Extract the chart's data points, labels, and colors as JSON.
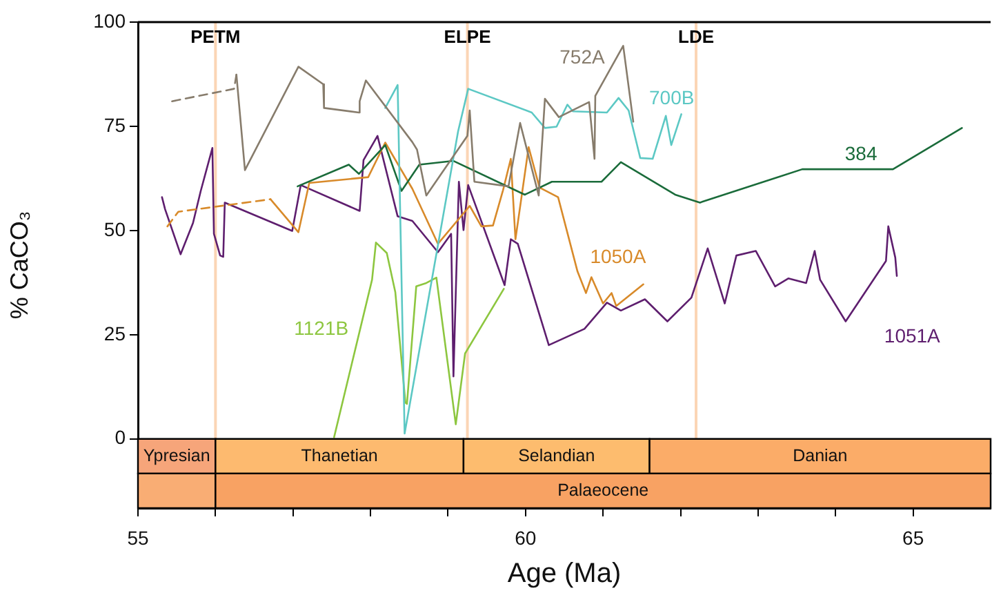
{
  "chart_data": {
    "type": "line",
    "xlabel": "Age (Ma)",
    "ylabel": "% CaCO₃",
    "xlim": [
      55,
      66
    ],
    "ylim": [
      -16.6,
      100
    ],
    "xticks": [
      55,
      {
        "value": 56,
        "label": null
      },
      {
        "value": 57,
        "label": null
      },
      {
        "value": 58,
        "label": null
      },
      {
        "value": 59,
        "label": null
      },
      60,
      {
        "value": 61,
        "label": null
      },
      {
        "value": 62,
        "label": null
      },
      {
        "value": 63,
        "label": null
      },
      {
        "value": 64,
        "label": null
      },
      65
    ],
    "yticks": [
      0,
      25,
      50,
      75,
      100
    ],
    "grid": false,
    "legend": false,
    "marker": "none",
    "series": [
      {
        "name": "752A",
        "color": "#877c6c",
        "x": [
          56.27,
          56.38,
          57.07,
          57.39,
          57.4,
          57.85,
          57.86,
          57.94,
          58.54,
          58.6,
          58.72,
          59.25,
          59.28,
          59.34,
          59.78,
          59.93,
          60.17,
          60.25,
          60.43,
          60.82,
          60.89,
          60.9,
          61.26,
          61.39
        ],
        "values": [
          87.4,
          64.5,
          89.3,
          85.1,
          79.4,
          78.3,
          81,
          86,
          71.2,
          69.4,
          58.4,
          72.7,
          78.8,
          61.7,
          60.6,
          75.8,
          58.4,
          81.6,
          77.2,
          80.8,
          67.2,
          82.3,
          94.3,
          76.1
        ]
      },
      {
        "color": "#877c6c",
        "line_style": "dashed",
        "x": [
          55.44,
          56.24,
          56.27
        ],
        "values": [
          81,
          84,
          87.4
        ]
      },
      {
        "name": "700B",
        "color": "#5cc8c4",
        "x": [
          58.19,
          58.35,
          58.44,
          59.13,
          59.26,
          60.08,
          60.25,
          60.4,
          60.54,
          60.61,
          61.05,
          61.2,
          61.33,
          61.48,
          61.64,
          61.81,
          61.88,
          62.01
        ],
        "values": [
          79.4,
          84.9,
          1.3,
          73.8,
          84,
          78.3,
          74.6,
          74.9,
          80.2,
          78.6,
          78.3,
          81.8,
          78.8,
          67.4,
          67.2,
          77.5,
          70.5,
          77.9
        ]
      },
      {
        "name": "384",
        "color": "#1a6b3a",
        "x": [
          57.06,
          57.72,
          57.85,
          58.19,
          58.4,
          58.63,
          59.07,
          59.99,
          60.34,
          60.98,
          61.23,
          61.93,
          62.25,
          63.57,
          64.74,
          65.63
        ],
        "values": [
          60.6,
          65.8,
          63.6,
          70.5,
          59.5,
          65.8,
          66.7,
          58.6,
          61.7,
          61.7,
          66.4,
          58.6,
          56.7,
          64.7,
          64.7,
          74.6
        ]
      },
      {
        "name": "1050A",
        "color": "#d88a2a",
        "x": [
          56.71,
          57.07,
          57.21,
          57.97,
          58.19,
          58.54,
          58.87,
          59.28,
          59.43,
          59.58,
          59.71,
          59.81,
          59.87,
          60.04,
          60.18,
          60.42,
          60.67,
          60.78,
          60.85,
          61,
          61.11,
          61.17,
          61.52
        ],
        "values": [
          57.5,
          49.6,
          61.4,
          62.8,
          71.1,
          60,
          46.8,
          55.9,
          51,
          51.2,
          59.7,
          67.2,
          47.9,
          70,
          60.3,
          58,
          40.2,
          35,
          38.8,
          32.5,
          35,
          31.9,
          37.1
        ]
      },
      {
        "color": "#d88a2a",
        "line_style": "dashed",
        "x": [
          55.38,
          55.52,
          56.71
        ],
        "values": [
          51,
          54.5,
          57.5
        ]
      },
      {
        "name": "1051A",
        "color": "#5e1e6e",
        "x": [
          55.31,
          55.35,
          55.55,
          55.71,
          55.81,
          55.96,
          55.98,
          56.06,
          56.1,
          56.12,
          56.99,
          57.1,
          57.86,
          57.91,
          58.09,
          58.35,
          58.54,
          58.87,
          59.04,
          59.07,
          59.14,
          59.2,
          59.26,
          59.73,
          59.81,
          59.9,
          60.3,
          60.76,
          61.05,
          61.23,
          61.54,
          61.83,
          62.14,
          62.35,
          62.57,
          62.72,
          62.97,
          63.22,
          63.39,
          63.62,
          63.73,
          63.8,
          64.13,
          64.65,
          64.68,
          64.77,
          64.79
        ],
        "values": [
          58,
          55.1,
          44.3,
          51.8,
          59.5,
          69.8,
          49.2,
          44,
          43.7,
          56.7,
          49.9,
          60.9,
          54.7,
          66.9,
          72.7,
          53.4,
          52.3,
          44.8,
          49.2,
          15,
          61.7,
          50.1,
          60.9,
          36.9,
          47.9,
          46.8,
          22.5,
          26.4,
          32.7,
          30.8,
          33.5,
          28.2,
          33.9,
          45.7,
          32.5,
          44,
          45.1,
          36.6,
          38.5,
          37.4,
          45.1,
          38.2,
          28.2,
          42.7,
          51,
          43.5,
          39.1
        ]
      },
      {
        "name": "1121B",
        "color": "#8dc63f",
        "x": [
          57.53,
          58.02,
          58.07,
          58.21,
          58.32,
          58.45,
          58.47,
          58.59,
          58.72,
          58.85,
          59.1,
          59.22,
          59.72
        ],
        "values": [
          0.4,
          38.2,
          47.1,
          44.6,
          35.2,
          8.7,
          8.4,
          36.6,
          37.4,
          38.7,
          3.5,
          20.5,
          36
        ]
      }
    ],
    "ref_lines": [
      {
        "axis": "x",
        "value": 56,
        "label": "PETM",
        "color": "#fbd5b5"
      },
      {
        "axis": "x",
        "value": 59.25,
        "label": "ELPE",
        "color": "#fbd5b5"
      },
      {
        "axis": "x",
        "value": 62.2,
        "label": "LDE",
        "color": "#fbd5b5"
      }
    ],
    "bands": [
      {
        "axis": "x",
        "from": 55,
        "to": 56,
        "label": "Ypresian",
        "color": "#f6a57a"
      },
      {
        "axis": "x",
        "from": 56,
        "to": 59.2,
        "label": "Thanetian",
        "color": "#fdba6f"
      },
      {
        "axis": "x",
        "from": 59.2,
        "to": 61.6,
        "label": "Selandian",
        "color": "#fdbc6e"
      },
      {
        "axis": "x",
        "from": 61.6,
        "to": 66,
        "label": "Danian",
        "color": "#fbac68"
      },
      {
        "axis": "x",
        "from": 55,
        "to": 56,
        "label": null,
        "color": "#f9ad74"
      },
      {
        "axis": "x",
        "from": 56,
        "to": 66,
        "label": "Palaeocene",
        "color": "#f8a263"
      }
    ]
  }
}
